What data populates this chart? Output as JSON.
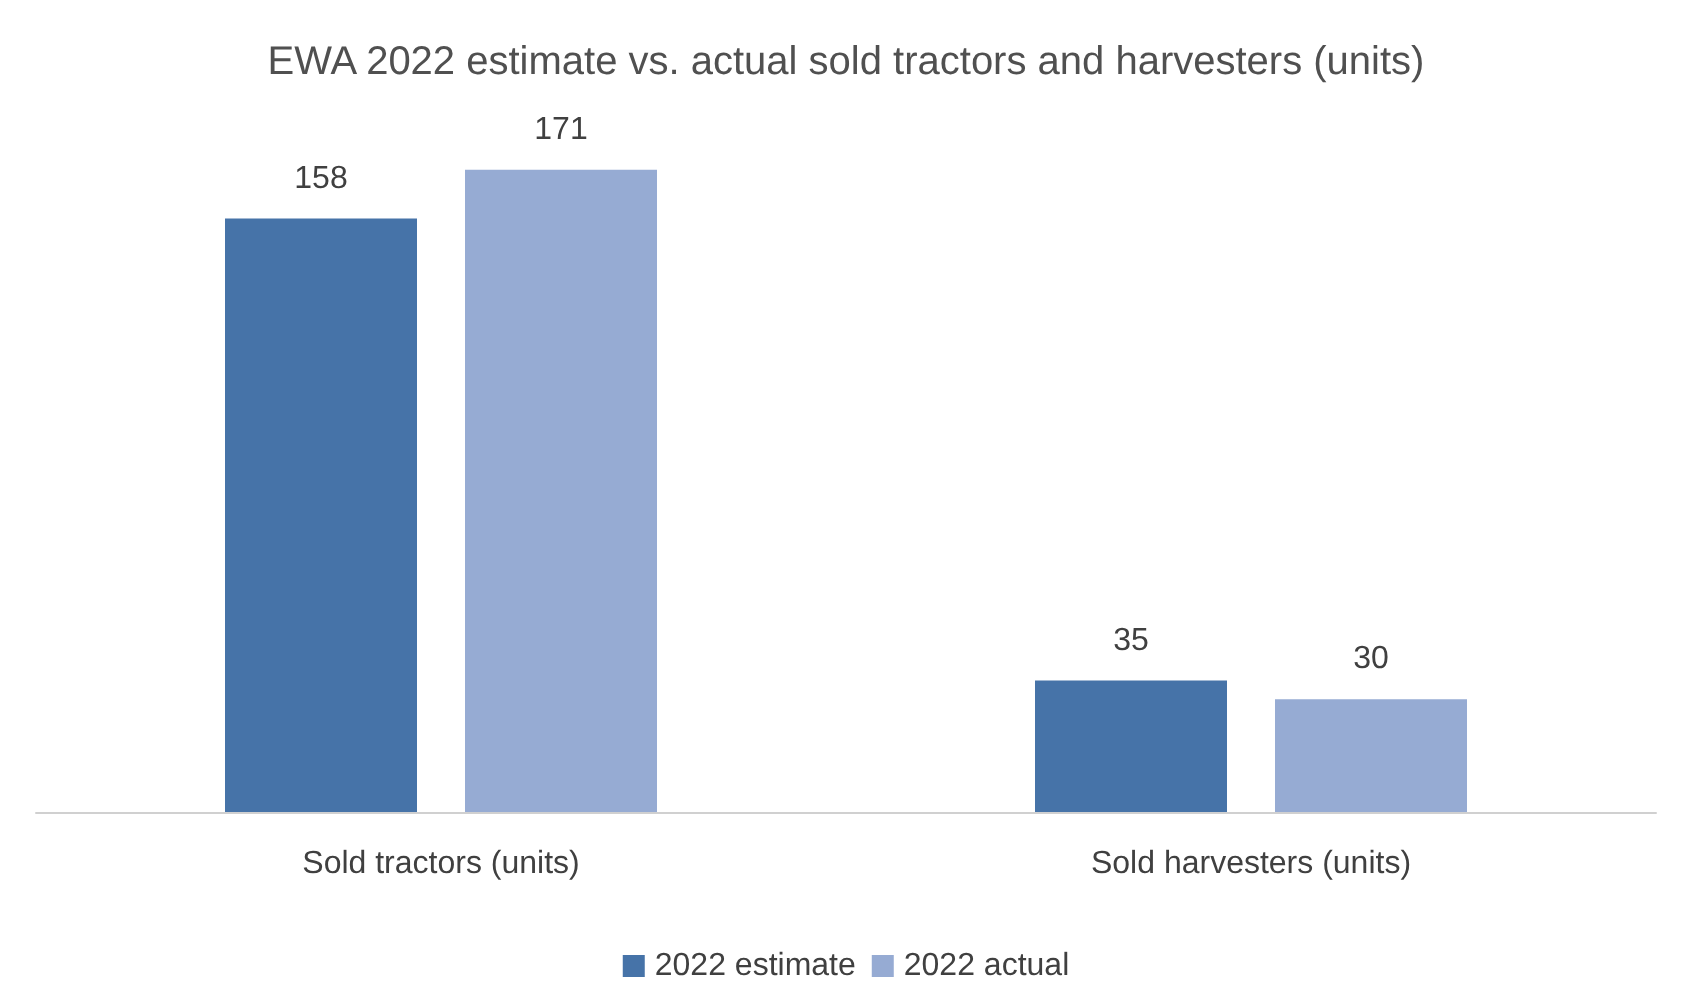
{
  "chart_data": {
    "type": "bar",
    "title": "EWA 2022 estimate vs. actual sold tractors and harvesters (units)",
    "categories": [
      "Sold tractors (units)",
      "Sold harvesters (units)"
    ],
    "series": [
      {
        "name": "2022 estimate",
        "color": "#4673a8",
        "values": [
          158,
          35
        ]
      },
      {
        "name": "2022 actual",
        "color": "#96abd3",
        "values": [
          171,
          30
        ]
      }
    ],
    "data_labels": true,
    "legend": "bottom"
  }
}
